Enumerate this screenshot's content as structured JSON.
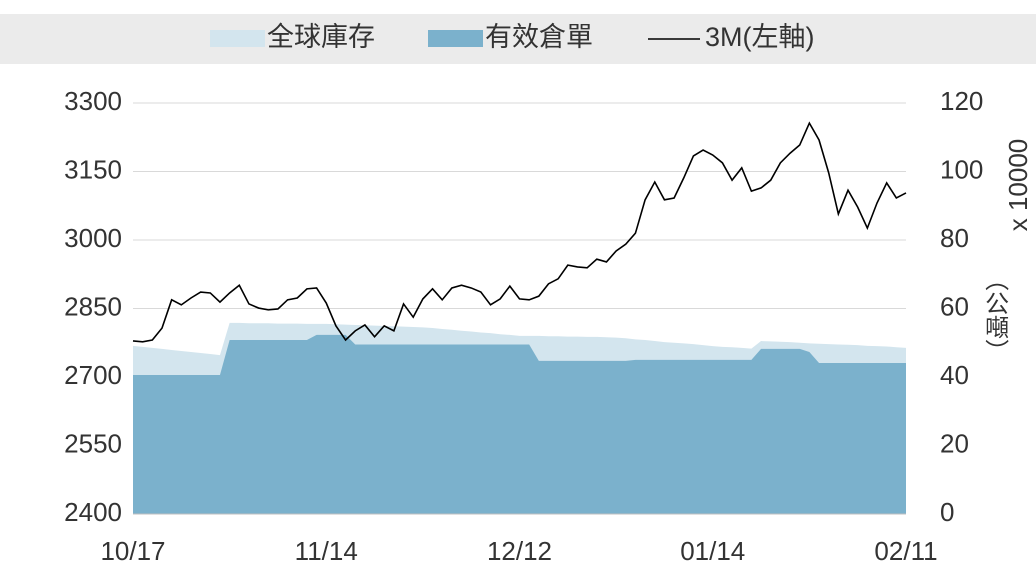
{
  "chart_data": {
    "type": "line",
    "categories": [
      "10/17",
      null,
      null,
      null,
      null,
      null,
      null,
      null,
      null,
      null,
      null,
      null,
      null,
      null,
      null,
      null,
      null,
      null,
      null,
      null,
      "11/14",
      null,
      null,
      null,
      null,
      null,
      null,
      null,
      null,
      null,
      null,
      null,
      null,
      null,
      null,
      null,
      null,
      null,
      null,
      null,
      "12/12",
      null,
      null,
      null,
      null,
      null,
      null,
      null,
      null,
      null,
      null,
      null,
      null,
      null,
      null,
      null,
      null,
      null,
      null,
      null,
      "01/14",
      null,
      null,
      null,
      null,
      null,
      null,
      null,
      null,
      null,
      null,
      null,
      null,
      null,
      null,
      null,
      null,
      null,
      null,
      null,
      "02/11"
    ],
    "series": [
      {
        "name": "全球庫存",
        "type": "area",
        "axis": "y2",
        "color": "#d3e5ee",
        "values": [
          49.1,
          48.8,
          48.5,
          48.2,
          47.9,
          47.6,
          47.3,
          47.0,
          46.7,
          46.4,
          55.8,
          55.8,
          55.7,
          55.7,
          55.7,
          55.6,
          55.6,
          55.6,
          55.5,
          55.5,
          55.5,
          55.4,
          55.3,
          55.2,
          55.1,
          55.0,
          54.9,
          54.8,
          54.7,
          54.6,
          54.5,
          54.3,
          54.0,
          53.8,
          53.5,
          53.3,
          53.0,
          52.8,
          52.5,
          52.3,
          52.0,
          52.0,
          52.0,
          51.9,
          51.9,
          51.8,
          51.8,
          51.7,
          51.7,
          51.6,
          51.5,
          51.3,
          51.0,
          50.8,
          50.5,
          50.2,
          50.0,
          49.8,
          49.6,
          49.3,
          49.0,
          48.8,
          48.7,
          48.5,
          48.3,
          50.5,
          50.4,
          50.3,
          50.2,
          50.0,
          49.8,
          49.7,
          49.6,
          49.5,
          49.4,
          49.3,
          49.1,
          49.0,
          48.9,
          48.7,
          48.5
        ]
      },
      {
        "name": "有效倉單",
        "type": "area",
        "axis": "y2",
        "color": "#7bb1cc",
        "values": [
          40.6,
          40.6,
          40.6,
          40.6,
          40.6,
          40.6,
          40.6,
          40.6,
          40.6,
          40.6,
          50.8,
          50.8,
          50.8,
          50.8,
          50.8,
          50.8,
          50.8,
          50.8,
          50.8,
          52.3,
          52.3,
          52.3,
          52.3,
          49.5,
          49.5,
          49.5,
          49.5,
          49.5,
          49.5,
          49.5,
          49.5,
          49.5,
          49.5,
          49.5,
          49.5,
          49.5,
          49.5,
          49.5,
          49.5,
          49.5,
          49.5,
          49.5,
          44.7,
          44.7,
          44.7,
          44.7,
          44.7,
          44.7,
          44.7,
          44.7,
          44.7,
          44.7,
          45.0,
          45.0,
          45.0,
          45.0,
          45.0,
          45.0,
          45.0,
          45.0,
          45.0,
          45.0,
          45.0,
          45.0,
          45.0,
          48.2,
          48.2,
          48.2,
          48.2,
          48.2,
          47.3,
          44.1,
          44.1,
          44.1,
          44.1,
          44.1,
          44.1,
          44.1,
          44.1,
          44.1,
          44.1
        ]
      },
      {
        "name": "3M(左軸)",
        "type": "line",
        "color": "#000000",
        "values": [
          2779,
          2777,
          2781,
          2807,
          2869,
          2858,
          2873,
          2886,
          2884,
          2864,
          2884,
          2901,
          2860,
          2851,
          2847,
          2849,
          2869,
          2873,
          2893,
          2895,
          2862,
          2812,
          2781,
          2801,
          2814,
          2788,
          2812,
          2801,
          2860,
          2831,
          2871,
          2893,
          2869,
          2895,
          2901,
          2895,
          2886,
          2858,
          2871,
          2899,
          2871,
          2869,
          2877,
          2904,
          2915,
          2945,
          2941,
          2939,
          2958,
          2952,
          2976,
          2991,
          3015,
          3088,
          3127,
          3088,
          3092,
          3136,
          3184,
          3197,
          3186,
          3169,
          3131,
          3158,
          3107,
          3114,
          3131,
          3169,
          3190,
          3208,
          3256,
          3219,
          3147,
          3057,
          3109,
          3072,
          3026,
          3081,
          3125,
          3092,
          3103
        ]
      }
    ],
    "ylim": [
      2400,
      3300
    ],
    "yticks": [
      2400,
      2550,
      2700,
      2850,
      3000,
      3150,
      3300
    ],
    "y2lim": [
      0,
      120
    ],
    "y2ticks": [
      0,
      20,
      40,
      60,
      80,
      100,
      120
    ],
    "y2label": "（公噸）",
    "y2_scale_label": "x 10000",
    "grid": true,
    "legend": "top"
  }
}
